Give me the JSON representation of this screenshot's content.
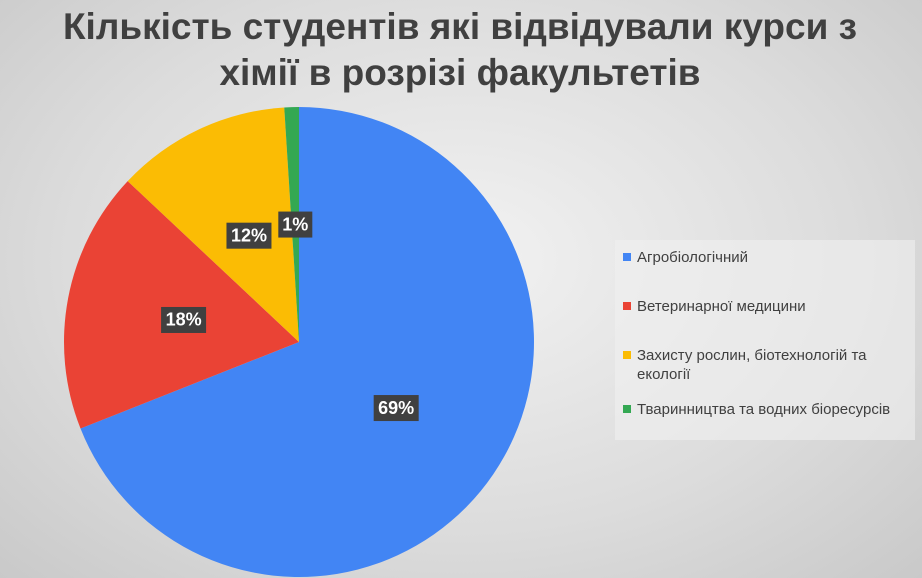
{
  "chart_data": {
    "type": "pie",
    "title": "Кількість студентів які відвідували курси з хімії в розрізі факультетів",
    "categories": [
      "Агробіологічний",
      "Ветеринарної медицини",
      "Захисту рослин, біотехнологій та екології",
      "Тваринництва та водних біоресурсів"
    ],
    "values": [
      69,
      18,
      12,
      1
    ],
    "value_labels": [
      "69%",
      "18%",
      "12%",
      "1%"
    ],
    "colors": [
      "#4285f4",
      "#ea4335",
      "#fbbc04",
      "#34a853"
    ],
    "legend": "right"
  }
}
